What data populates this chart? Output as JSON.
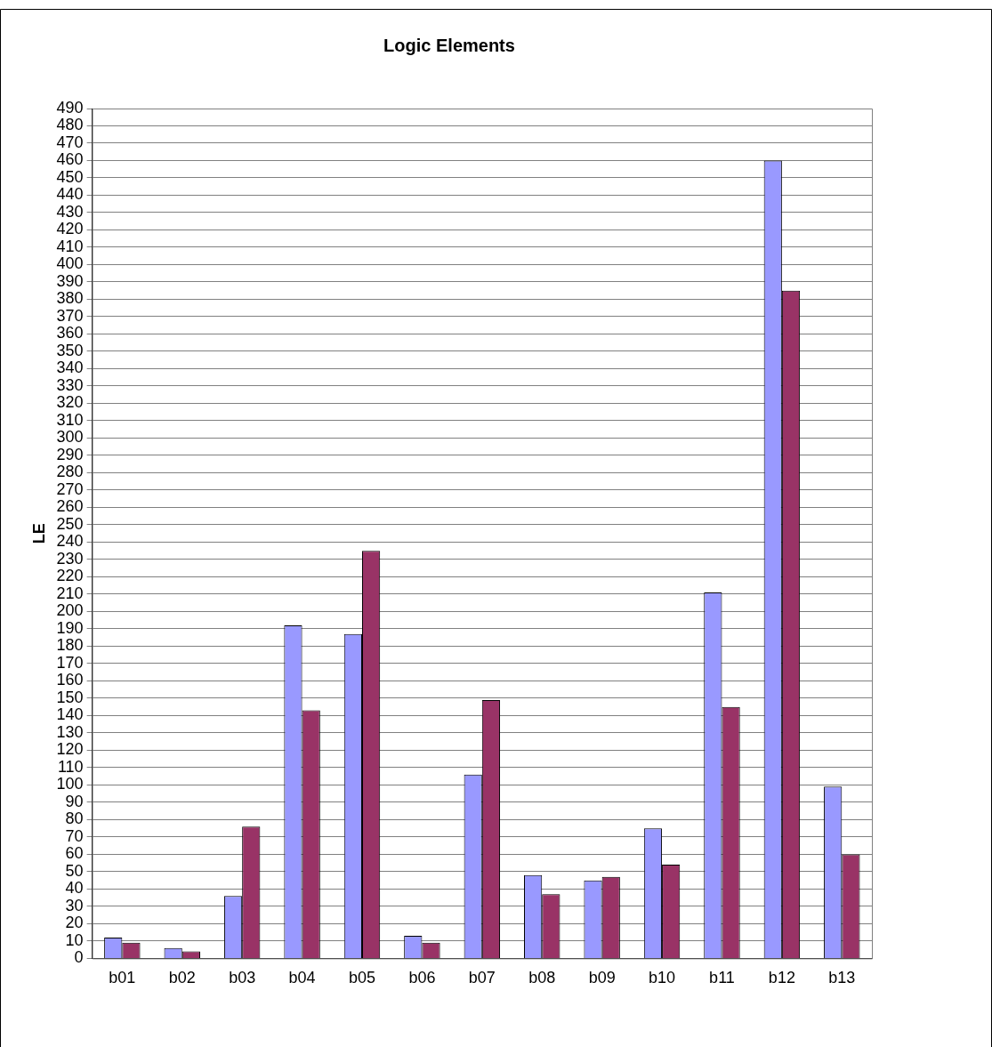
{
  "chart_data": {
    "type": "bar",
    "title": "Logic Elements",
    "ylabel": "LE",
    "categories": [
      "b01",
      "b02",
      "b03",
      "b04",
      "b05",
      "b06",
      "b07",
      "b08",
      "b09",
      "b10",
      "b11",
      "b12",
      "b13"
    ],
    "series": [
      {
        "color": "#9999ff",
        "values": [
          12,
          6,
          36,
          192,
          187,
          13,
          106,
          48,
          45,
          75,
          211,
          460,
          99
        ]
      },
      {
        "color": "#993366",
        "values": [
          9,
          4,
          76,
          143,
          235,
          9,
          149,
          37,
          47,
          54,
          145,
          385,
          60
        ]
      }
    ],
    "ylim": [
      0,
      490
    ],
    "yticks": [
      0,
      10,
      20,
      30,
      40,
      50,
      60,
      70,
      80,
      90,
      100,
      110,
      120,
      130,
      140,
      150,
      160,
      170,
      180,
      190,
      200,
      210,
      220,
      230,
      240,
      250,
      260,
      270,
      280,
      290,
      300,
      310,
      320,
      330,
      340,
      350,
      360,
      370,
      380,
      390,
      400,
      410,
      420,
      430,
      440,
      450,
      460,
      470,
      480,
      490
    ],
    "grid": "y"
  }
}
